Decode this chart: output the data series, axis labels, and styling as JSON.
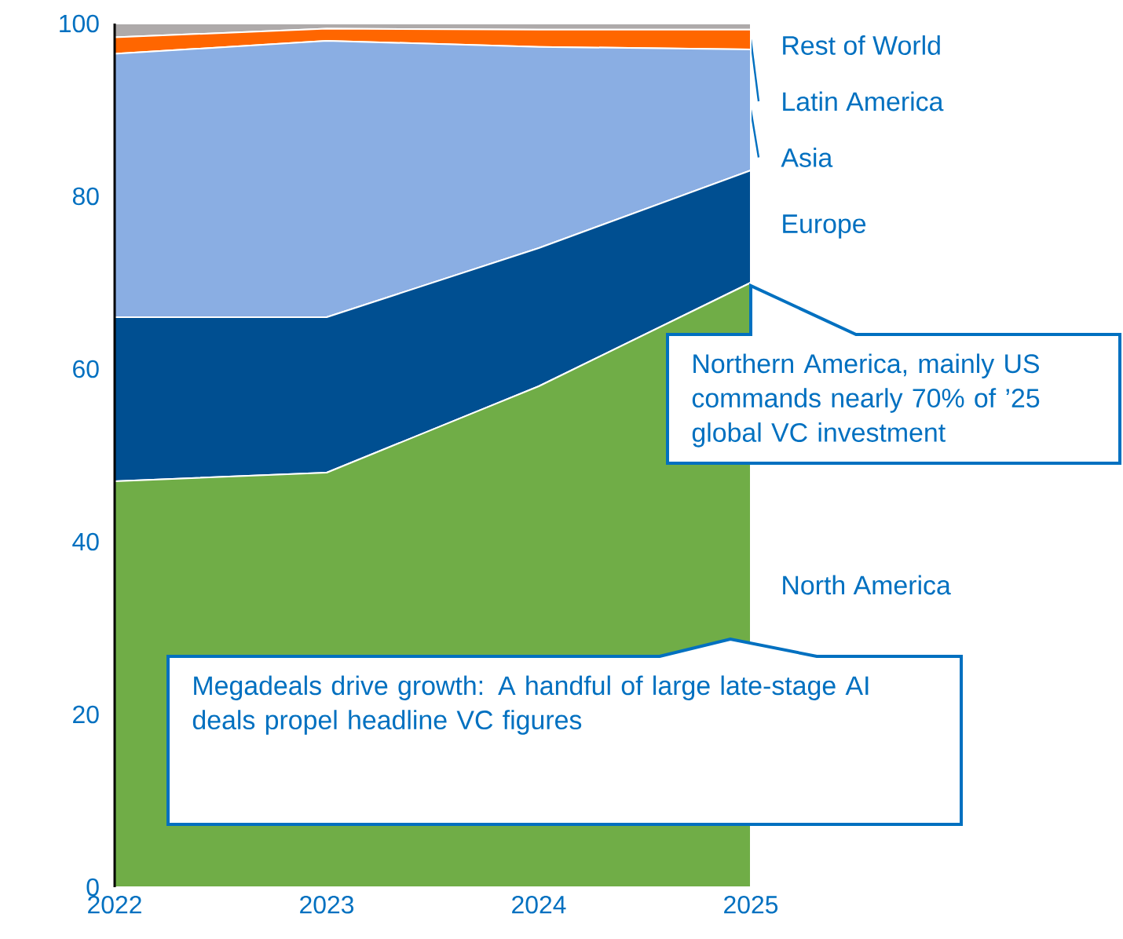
{
  "chart_data": {
    "type": "area",
    "stacked": true,
    "x": [
      2022,
      2023,
      2024,
      2025
    ],
    "xlim": [
      2022,
      2025
    ],
    "xticks": [
      2022,
      2023,
      2024,
      2025
    ],
    "ylim": [
      0,
      100
    ],
    "yticks": [
      0,
      20,
      40,
      60,
      80,
      100
    ],
    "series": [
      {
        "name": "North America",
        "color": "#70ad47",
        "values": [
          47,
          48,
          58,
          70
        ]
      },
      {
        "name": "Europe",
        "color": "#004f91",
        "values": [
          19,
          18,
          16,
          13
        ]
      },
      {
        "name": "Asia",
        "color": "#8aaee3",
        "values": [
          30.5,
          32,
          23.3,
          14
        ]
      },
      {
        "name": "Latin America",
        "color": "#ff6600",
        "values": [
          1.9,
          1.4,
          2,
          2.3
        ]
      },
      {
        "name": "Rest of World",
        "color": "#aeaaaa",
        "values": [
          1.6,
          0.6,
          0.7,
          0.7
        ]
      }
    ],
    "annotations": [
      {
        "text": "Northern America, mainly US commands nearly 70% of ’25 global VC investment",
        "x": 2025,
        "y": 70
      },
      "Megadeals drive growth: A handful of large late-stage AI deals propel headline VC figures"
    ]
  }
}
